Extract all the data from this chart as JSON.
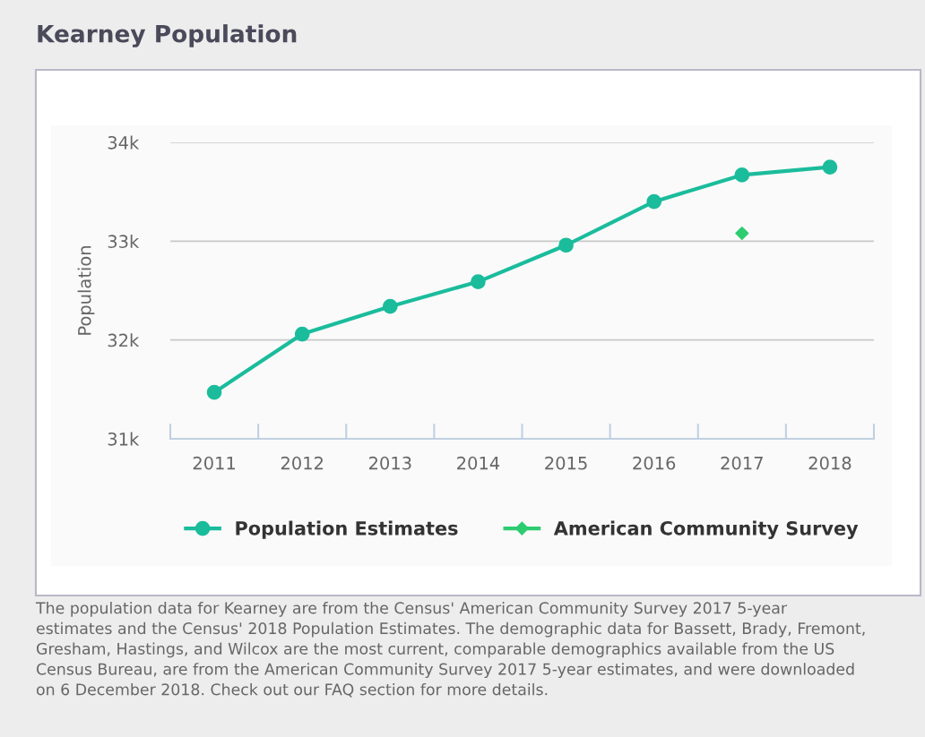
{
  "chart_data": {
    "type": "line",
    "title": "Kearney Population",
    "ylabel": "Population",
    "categories": [
      "2011",
      "2012",
      "2013",
      "2014",
      "2015",
      "2016",
      "2017",
      "2018"
    ],
    "series": [
      {
        "name": "Population Estimates",
        "color": "#1abc9c",
        "marker": "circle",
        "values": [
          31470,
          32060,
          32340,
          32590,
          32960,
          33400,
          33670,
          33750
        ]
      },
      {
        "name": "American Community Survey",
        "type": "scatter",
        "color": "#2ecc71",
        "marker": "diamond",
        "values": [
          null,
          null,
          null,
          null,
          null,
          null,
          33080,
          null
        ]
      }
    ],
    "ylim": [
      31000,
      34000
    ],
    "yticks": [
      {
        "value": 31000,
        "label": "31k"
      },
      {
        "value": 32000,
        "label": "32k"
      },
      {
        "value": 33000,
        "label": "33k"
      },
      {
        "value": 34000,
        "label": "34k"
      }
    ],
    "grid": "y",
    "legend": "bottom",
    "annotations": [
      "The population data for Kearney are from the Census' American Community Survey 2017 5-year\nestimates and the Census' 2018 Population Estimates. The demographic data for Bassett, Brady, Fremont,\nGresham, Hastings, and Wilcox are the most current, comparable demographics available from the US\nCensus Bureau, are from the American Community Survey 2017 5-year estimates, and were downloaded\non 6 December 2018. Check out our FAQ section for more details."
    ]
  }
}
